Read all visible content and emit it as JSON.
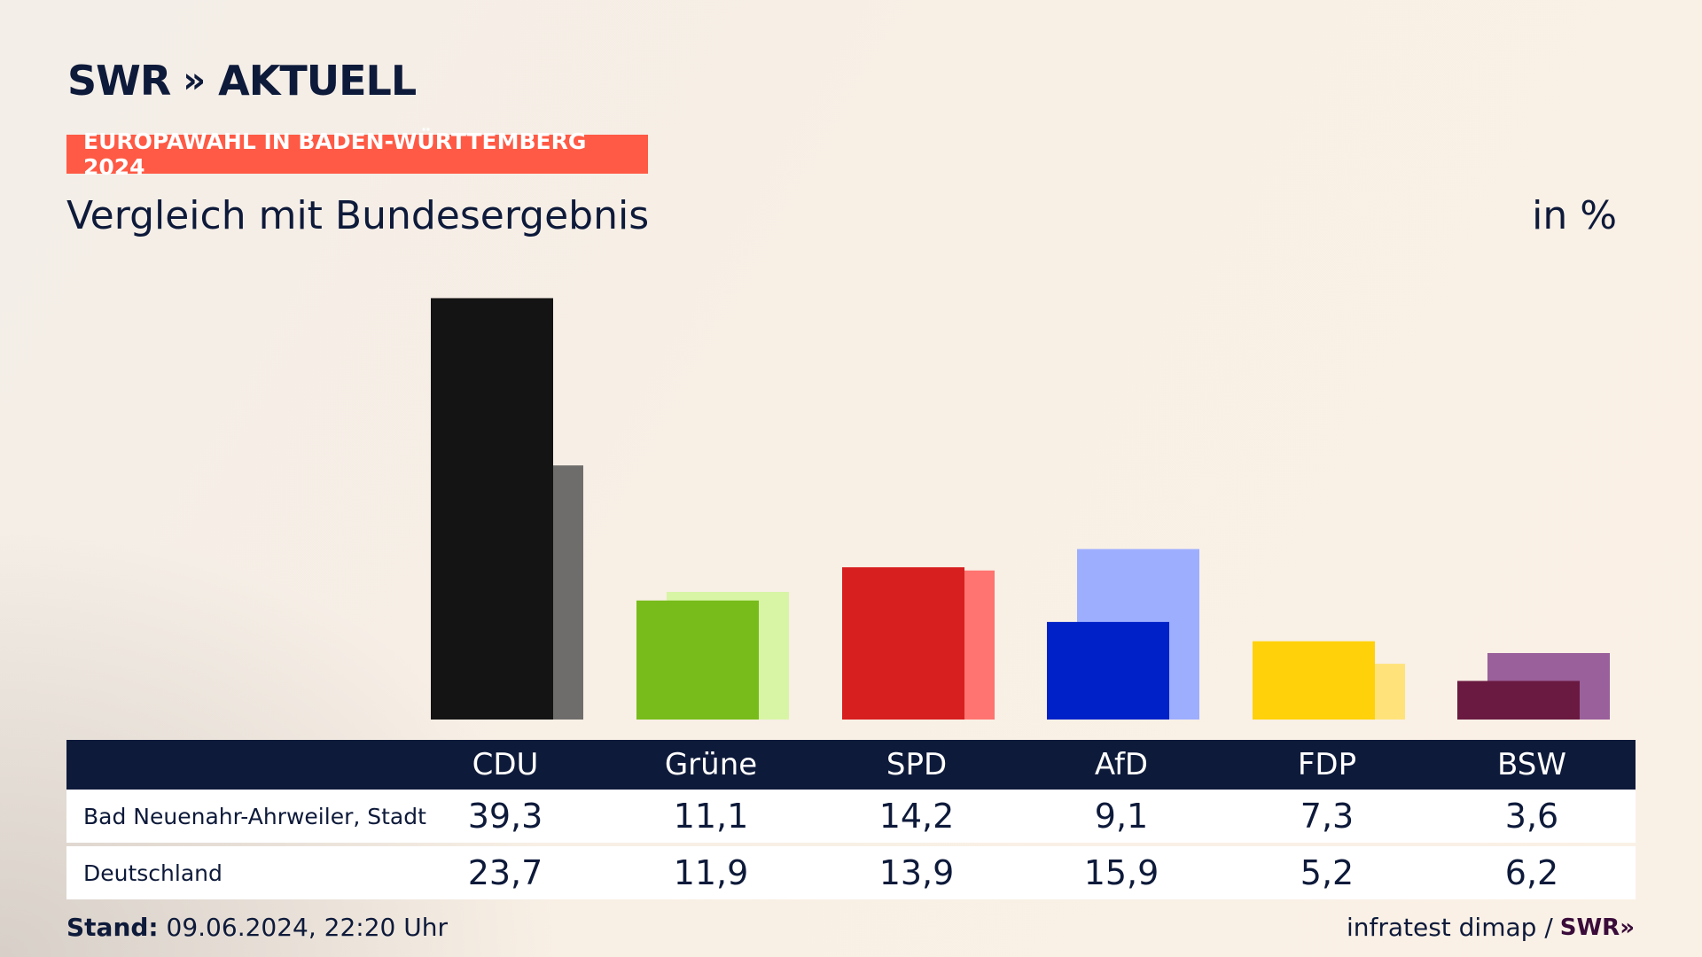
{
  "brand": {
    "name": "SWR",
    "chevrons": "»",
    "product": "AKTUELL"
  },
  "badge": "EUROPAWAHL IN BADEN-WÜRTTEMBERG 2024",
  "subtitle": "Vergleich mit Bundesergebnis",
  "unit": "in %",
  "chart_data": {
    "type": "bar",
    "categories": [
      "CDU",
      "Grüne",
      "SPD",
      "AfD",
      "FDP",
      "BSW"
    ],
    "series": [
      {
        "name": "Bad Neuenahr-Ahrweiler, Stadt",
        "values": [
          39.3,
          11.1,
          14.2,
          9.1,
          7.3,
          3.6
        ]
      },
      {
        "name": "Deutschland",
        "values": [
          23.7,
          11.9,
          13.9,
          15.9,
          5.2,
          6.2
        ]
      }
    ],
    "colors_primary": [
      "#141414",
      "#78bc1b",
      "#d71f1f",
      "#0021c8",
      "#ffd10a",
      "#6a1a40"
    ],
    "colors_secondary": [
      "#6f6d6b",
      "#d8f5a6",
      "#ff7470",
      "#9eaeff",
      "#ffe37a",
      "#9a609b"
    ],
    "ylim": [
      0,
      40
    ],
    "grid": false
  },
  "table": {
    "rows": [
      {
        "label": "Bad Neuenahr-Ahrweiler, Stadt",
        "values": [
          "39,3",
          "11,1",
          "14,2",
          "9,1",
          "7,3",
          "3,6"
        ]
      },
      {
        "label": "Deutschland",
        "values": [
          "23,7",
          "11,9",
          "13,9",
          "15,9",
          "5,2",
          "6,2"
        ]
      }
    ]
  },
  "footer": {
    "stand_label": "Stand:",
    "stand_value": "09.06.2024, 22:20 Uhr",
    "source": "infratest dimap /",
    "source_brand": "SWR»"
  }
}
